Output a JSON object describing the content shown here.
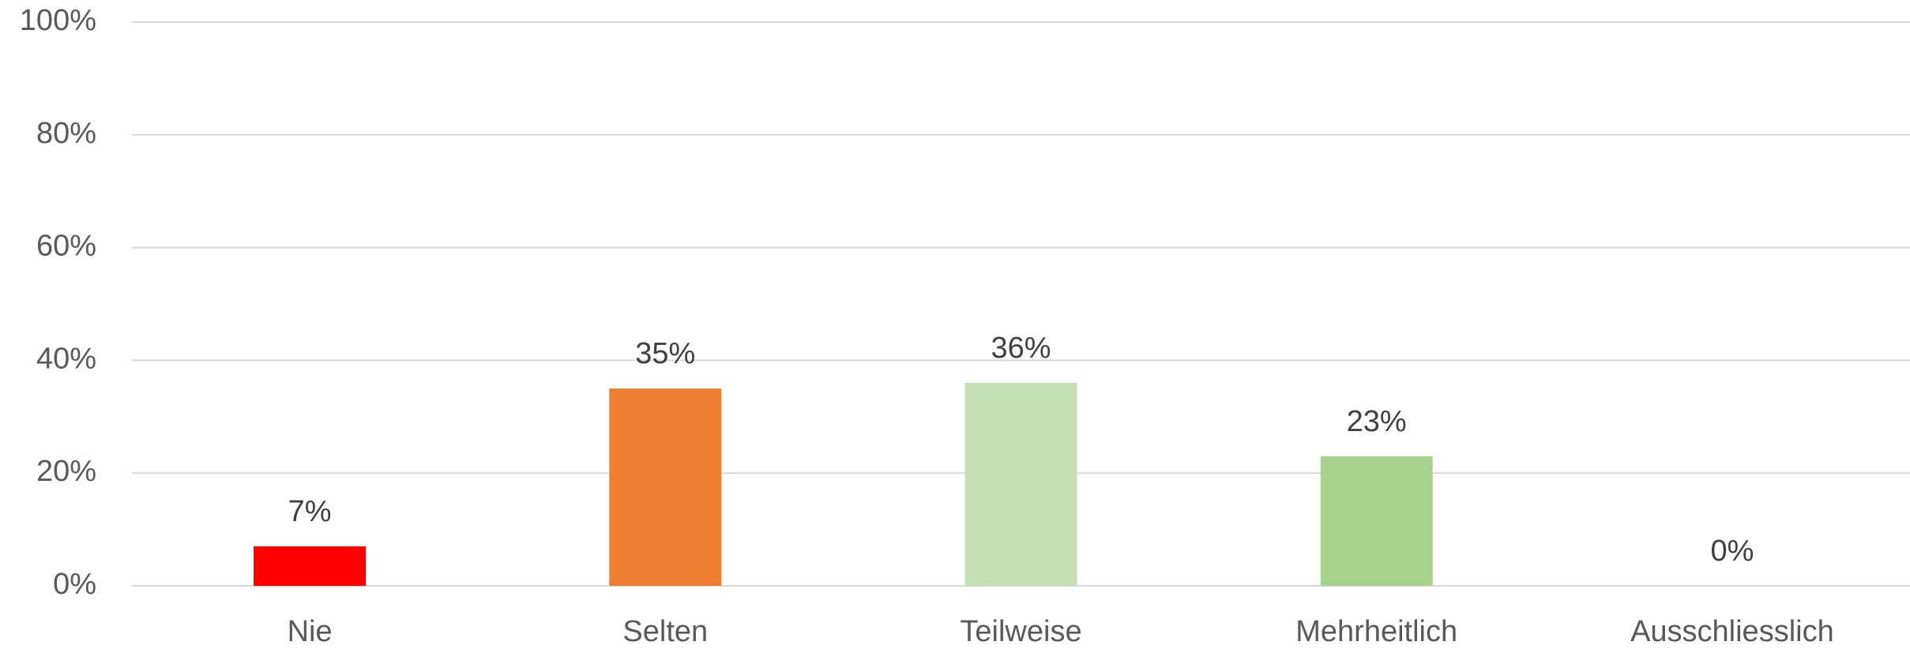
{
  "chart_data": {
    "type": "bar",
    "categories": [
      "Nie",
      "Selten",
      "Teilweise",
      "Mehrheitlich",
      "Ausschliesslich"
    ],
    "values": [
      7,
      35,
      36,
      23,
      0
    ],
    "value_labels": [
      "7%",
      "35%",
      "36%",
      "23%",
      "0%"
    ],
    "colors": [
      "#ff0000",
      "#ed7d31",
      "#c5e0b4",
      "#a9d18e",
      "#70ad47"
    ],
    "ylim": [
      0,
      100
    ],
    "yticks": [
      {
        "value": 0,
        "label": "0%"
      },
      {
        "value": 20,
        "label": "20%"
      },
      {
        "value": 40,
        "label": "40%"
      },
      {
        "value": 60,
        "label": "60%"
      },
      {
        "value": 80,
        "label": "80%"
      },
      {
        "value": 100,
        "label": "100%"
      }
    ],
    "grid": true
  }
}
